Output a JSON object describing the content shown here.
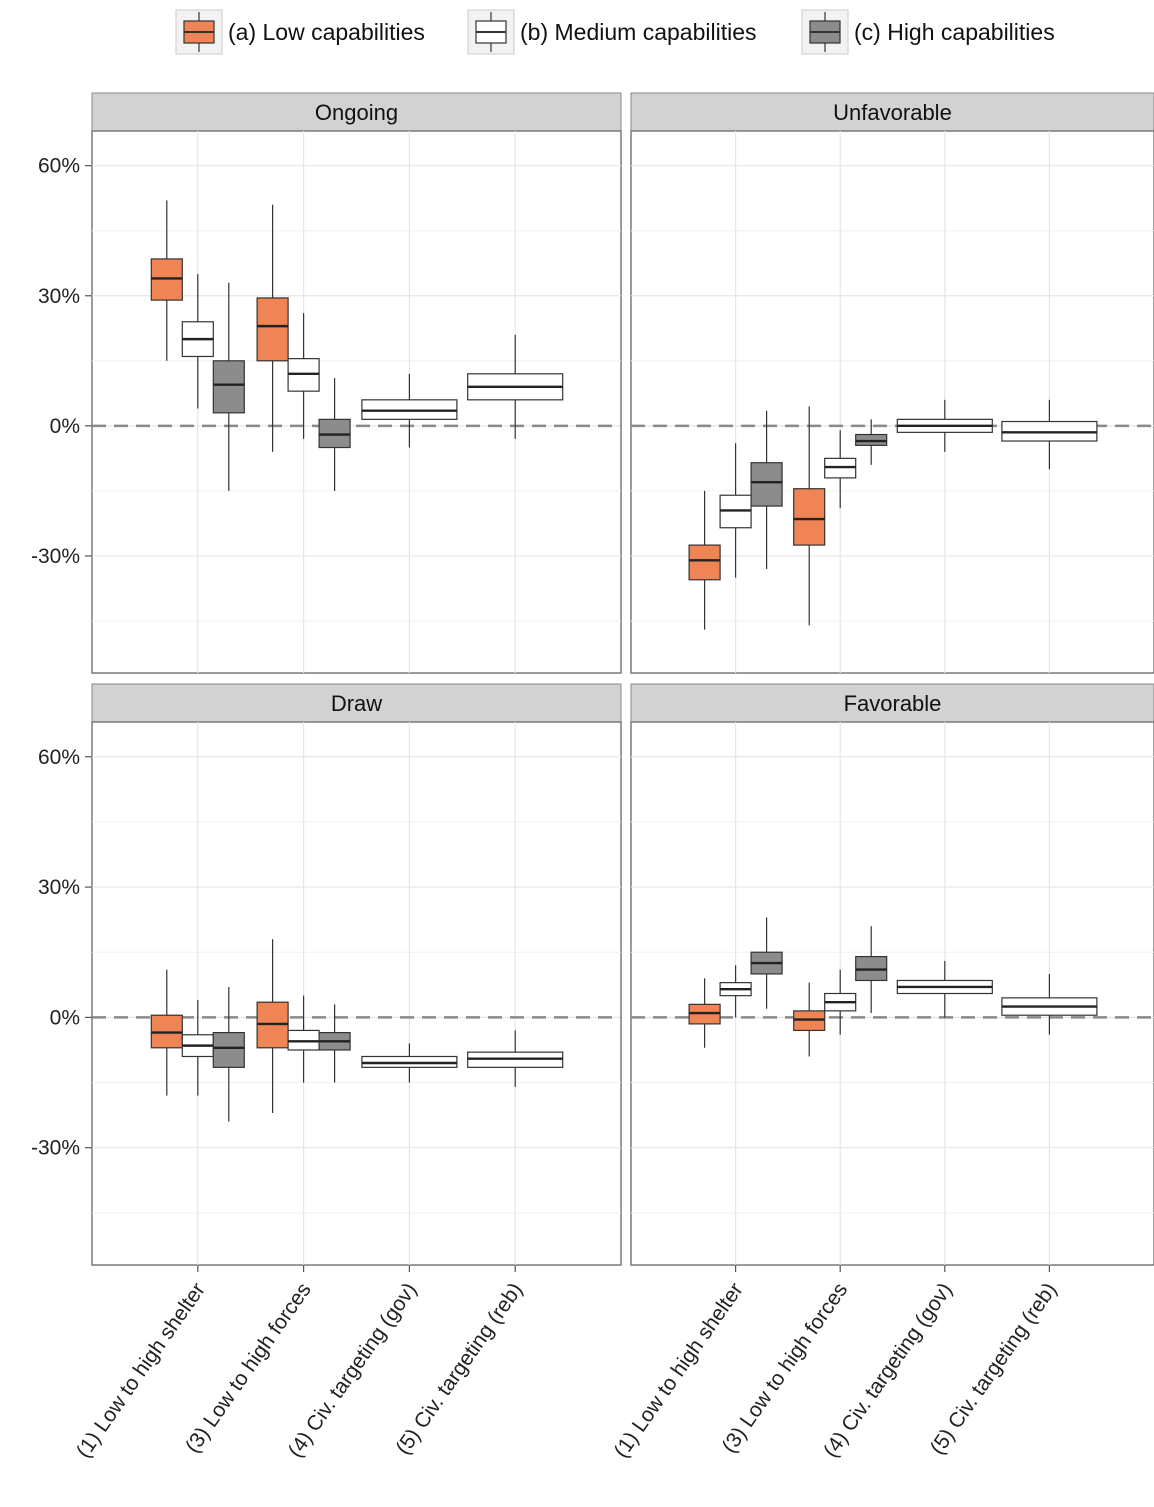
{
  "chart_data": {
    "type": "box",
    "legend": {
      "position": "top",
      "entries": [
        {
          "key": "low",
          "label": "(a) Low capabilities",
          "color": "#ef8454"
        },
        {
          "key": "med",
          "label": "(b) Medium capabilities",
          "color": "#ffffff"
        },
        {
          "key": "high",
          "label": "(c) High capabilities",
          "color": "#8c8c8c"
        }
      ]
    },
    "y_ticks": [
      {
        "value": 60,
        "label": "60%"
      },
      {
        "value": 30,
        "label": "30%"
      },
      {
        "value": 0,
        "label": "0%"
      },
      {
        "value": -30,
        "label": "-30%"
      }
    ],
    "ylim": [
      -57,
      68
    ],
    "x_categories": [
      "(1) Low to high shelter",
      "(3) Low to high forces",
      "(4) Civ. targeting (gov)",
      "(5) Civ. targeting (reb)"
    ],
    "reference_line": 0,
    "grid": true,
    "panels": [
      {
        "title": "Ongoing",
        "boxes": [
          {
            "category": 0,
            "group": "low",
            "min": 15,
            "q1": 29,
            "median": 34,
            "q3": 38.5,
            "max": 52
          },
          {
            "category": 0,
            "group": "med",
            "min": 4,
            "q1": 16,
            "median": 20,
            "q3": 24,
            "max": 35
          },
          {
            "category": 0,
            "group": "high",
            "min": -15,
            "q1": 3,
            "median": 9.5,
            "q3": 15,
            "max": 33
          },
          {
            "category": 1,
            "group": "low",
            "min": -6,
            "q1": 15,
            "median": 23,
            "q3": 29.5,
            "max": 51
          },
          {
            "category": 1,
            "group": "med",
            "min": -3,
            "q1": 8,
            "median": 12,
            "q3": 15.5,
            "max": 26
          },
          {
            "category": 1,
            "group": "high",
            "min": -15,
            "q1": -5,
            "median": -2,
            "q3": 1.5,
            "max": 11
          },
          {
            "category": 2,
            "group": "med",
            "min": -5,
            "q1": 1.5,
            "median": 3.5,
            "q3": 6,
            "max": 12
          },
          {
            "category": 3,
            "group": "med",
            "min": -3,
            "q1": 6,
            "median": 9,
            "q3": 12,
            "max": 21
          }
        ]
      },
      {
        "title": "Unfavorable",
        "boxes": [
          {
            "category": 0,
            "group": "low",
            "min": -47,
            "q1": -35.5,
            "median": -31,
            "q3": -27.5,
            "max": -15
          },
          {
            "category": 0,
            "group": "med",
            "min": -35,
            "q1": -23.5,
            "median": -19.5,
            "q3": -16,
            "max": -4
          },
          {
            "category": 0,
            "group": "high",
            "min": -33,
            "q1": -18.5,
            "median": -13,
            "q3": -8.5,
            "max": 3.5
          },
          {
            "category": 1,
            "group": "low",
            "min": -46,
            "q1": -27.5,
            "median": -21.5,
            "q3": -14.5,
            "max": 4.5
          },
          {
            "category": 1,
            "group": "med",
            "min": -19,
            "q1": -12,
            "median": -9.5,
            "q3": -7.5,
            "max": -1
          },
          {
            "category": 1,
            "group": "high",
            "min": -9,
            "q1": -4.5,
            "median": -3.5,
            "q3": -2,
            "max": 1.5
          },
          {
            "category": 2,
            "group": "med",
            "min": -6,
            "q1": -1.5,
            "median": 0,
            "q3": 1.5,
            "max": 6
          },
          {
            "category": 3,
            "group": "med",
            "min": -10,
            "q1": -3.5,
            "median": -1.5,
            "q3": 1,
            "max": 6
          }
        ]
      },
      {
        "title": "Draw",
        "boxes": [
          {
            "category": 0,
            "group": "low",
            "min": -18,
            "q1": -7,
            "median": -3.5,
            "q3": 0.5,
            "max": 11
          },
          {
            "category": 0,
            "group": "med",
            "min": -18,
            "q1": -9,
            "median": -6.5,
            "q3": -4,
            "max": 4
          },
          {
            "category": 0,
            "group": "high",
            "min": -24,
            "q1": -11.5,
            "median": -7,
            "q3": -3.5,
            "max": 7
          },
          {
            "category": 1,
            "group": "low",
            "min": -22,
            "q1": -7,
            "median": -1.5,
            "q3": 3.5,
            "max": 18
          },
          {
            "category": 1,
            "group": "med",
            "min": -15,
            "q1": -7.5,
            "median": -5.5,
            "q3": -3,
            "max": 5
          },
          {
            "category": 1,
            "group": "high",
            "min": -15,
            "q1": -7.5,
            "median": -5.5,
            "q3": -3.5,
            "max": 3
          },
          {
            "category": 2,
            "group": "med",
            "min": -15,
            "q1": -11.5,
            "median": -10.5,
            "q3": -9,
            "max": -6
          },
          {
            "category": 3,
            "group": "med",
            "min": -16,
            "q1": -11.5,
            "median": -9.5,
            "q3": -8,
            "max": -3
          }
        ]
      },
      {
        "title": "Favorable",
        "boxes": [
          {
            "category": 0,
            "group": "low",
            "min": -7,
            "q1": -1.5,
            "median": 1,
            "q3": 3,
            "max": 9
          },
          {
            "category": 0,
            "group": "med",
            "min": 0,
            "q1": 5,
            "median": 6.5,
            "q3": 8,
            "max": 12
          },
          {
            "category": 0,
            "group": "high",
            "min": 2,
            "q1": 10,
            "median": 12.5,
            "q3": 15,
            "max": 23
          },
          {
            "category": 1,
            "group": "low",
            "min": -9,
            "q1": -3,
            "median": -0.5,
            "q3": 1.5,
            "max": 8
          },
          {
            "category": 1,
            "group": "med",
            "min": -4,
            "q1": 1.5,
            "median": 3.5,
            "q3": 5.5,
            "max": 11
          },
          {
            "category": 1,
            "group": "high",
            "min": 1,
            "q1": 8.5,
            "median": 11,
            "q3": 14,
            "max": 21
          },
          {
            "category": 2,
            "group": "med",
            "min": 0,
            "q1": 5.5,
            "median": 7,
            "q3": 8.5,
            "max": 13
          },
          {
            "category": 3,
            "group": "med",
            "min": -4,
            "q1": 0.5,
            "median": 2.5,
            "q3": 4.5,
            "max": 10
          }
        ]
      }
    ]
  }
}
